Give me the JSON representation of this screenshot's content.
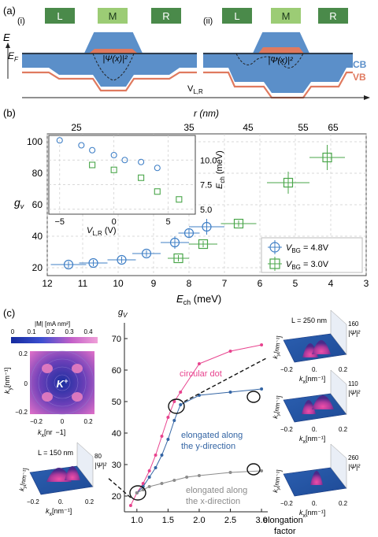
{
  "panel_labels": {
    "a": "(a)",
    "b": "(b)",
    "c": "(c)"
  },
  "panel_a": {
    "sub_i": "(i)",
    "sub_ii": "(ii)",
    "boxes": [
      "L",
      "M",
      "R"
    ],
    "energy_axis": "E",
    "fermi_label": "E",
    "fermi_sub": "F",
    "wavefunction": "|Ψ(x)|²",
    "cb_label": "CB",
    "vb_label": "VB",
    "voltage_label": "V",
    "voltage_sub": "L,R",
    "colors": {
      "cb": "#5b8fc9",
      "vb": "#e07a5f",
      "box_dark": "#4a8a4a",
      "box_light": "#9ccc75"
    }
  },
  "panel_b": {
    "top_axis_label": "r (nm)",
    "top_ticks": [
      "25",
      "35",
      "45",
      "55",
      "65"
    ],
    "y_label": "g",
    "y_sub": "v",
    "x_label": "E",
    "x_sub": "ch",
    "x_unit": " (meV)",
    "legend": [
      {
        "label": "V",
        "sub": "BG",
        "value": " = 4.8V"
      },
      {
        "label": "V",
        "sub": "BG",
        "value": " = 3.0V"
      }
    ],
    "inset": {
      "x_label": "V",
      "x_sub": "L,R",
      "x_unit": " (V)",
      "y_label": "E",
      "y_sub": "ch",
      "y_unit": " (meV)",
      "x_ticks": [
        "−5",
        "0",
        "5"
      ],
      "y_ticks": [
        "10.0",
        "7.5",
        "5.0"
      ]
    },
    "colors": {
      "blue": "#3f7fc6",
      "green": "#4aa64a"
    }
  },
  "chart_data": [
    {
      "type": "scatter",
      "title": "",
      "xlabel": "E_ch (meV)",
      "ylabel": "g_v",
      "xlim": [
        12,
        3
      ],
      "ylim": [
        15,
        105
      ],
      "x_ticks": [
        12,
        11,
        10,
        9,
        8,
        7,
        6,
        5,
        4,
        3
      ],
      "y_ticks": [
        20,
        40,
        60,
        80,
        100
      ],
      "grid": true,
      "legend": "bottom-right",
      "series": [
        {
          "name": "V_BG = 4.8V",
          "marker": "circle",
          "color": "#3f7fc6",
          "points": [
            [
              11.4,
              22,
              0.5,
              2
            ],
            [
              10.7,
              23,
              0.4,
              2
            ],
            [
              9.9,
              25,
              0.4,
              2
            ],
            [
              9.2,
              29,
              0.4,
              2
            ],
            [
              8.4,
              36,
              0.4,
              4
            ],
            [
              8.0,
              42,
              0.3,
              3
            ],
            [
              7.5,
              46,
              0.5,
              5
            ]
          ]
        },
        {
          "name": "V_BG = 3.0V",
          "marker": "square",
          "color": "#4aa64a",
          "points": [
            [
              8.3,
              26,
              0.3,
              2
            ],
            [
              7.6,
              35,
              0.4,
              2
            ],
            [
              6.6,
              48,
              0.5,
              2
            ],
            [
              5.2,
              74,
              0.6,
              7
            ],
            [
              4.1,
              90,
              0.5,
              8
            ]
          ]
        }
      ]
    },
    {
      "type": "scatter",
      "title": "",
      "xlabel": "V_L,R (V)",
      "ylabel": "E_ch (meV)",
      "xlim": [
        -6,
        7.5
      ],
      "ylim": [
        4.5,
        12.5
      ],
      "x_ticks": [
        -5,
        0,
        5
      ],
      "y_ticks": [
        10.0,
        7.5,
        5.0
      ],
      "series": [
        {
          "name": "V_BG = 4.8V",
          "marker": "circle",
          "color": "#3f7fc6",
          "points": [
            [
              -5,
              12.0
            ],
            [
              -3,
              11.5
            ],
            [
              -2,
              11.0
            ],
            [
              0,
              10.5
            ],
            [
              1,
              10.0
            ],
            [
              2.5,
              9.8
            ],
            [
              4,
              9.2
            ]
          ]
        },
        {
          "name": "V_BG = 3.0V",
          "marker": "square",
          "color": "#4aa64a",
          "points": [
            [
              -2,
              9.5
            ],
            [
              0,
              9.0
            ],
            [
              2.5,
              8.2
            ],
            [
              4,
              6.8
            ],
            [
              6,
              6.0
            ]
          ]
        }
      ]
    },
    {
      "type": "line",
      "title": "",
      "xlabel": "elongation factor",
      "ylabel": "g_v",
      "xlim": [
        0.8,
        3.1
      ],
      "ylim": [
        15,
        75
      ],
      "x_ticks": [
        1.0,
        1.5,
        2.0,
        2.5,
        3.0
      ],
      "y_ticks": [
        20,
        30,
        40,
        50,
        60,
        70
      ],
      "series": [
        {
          "name": "circular dot",
          "color": "#e8438e",
          "x": [
            0.9,
            1.0,
            1.1,
            1.2,
            1.3,
            1.4,
            1.5,
            1.6,
            1.7,
            2.0,
            2.5,
            3.0
          ],
          "y": [
            17,
            21,
            24,
            28,
            33,
            39,
            45,
            50,
            53,
            62,
            66,
            68
          ]
        },
        {
          "name": "elongated along the y-direction",
          "color": "#3465a4",
          "x": [
            1.0,
            1.1,
            1.2,
            1.3,
            1.4,
            1.5,
            1.6,
            1.7,
            2.0,
            2.5,
            3.0
          ],
          "y": [
            21,
            23,
            26,
            29,
            33,
            38,
            44,
            49,
            52,
            53,
            54
          ]
        },
        {
          "name": "elongated along the x-direction",
          "color": "#8c8c8c",
          "x": [
            1.0,
            1.1,
            1.2,
            1.4,
            1.6,
            1.8,
            2.0,
            2.5,
            3.0
          ],
          "y": [
            21,
            22,
            23,
            24,
            25,
            26,
            26.5,
            27.5,
            28
          ]
        }
      ]
    }
  ],
  "panel_c": {
    "colorbar_label": "|M| [mA nm²]",
    "colorbar_ticks": [
      "0",
      "0.1",
      "0.2",
      "0.3",
      "0.4"
    ],
    "kplot": {
      "k_label": "K",
      "k_sup": "+",
      "x_label": "k",
      "x_sub": "x",
      "x_unit": "[nr",
      "x_unit_tail": "−1]",
      "y_label": "k",
      "y_sub": "y",
      "y_unit": "[nm⁻¹]",
      "x_ticks": [
        "−0.2",
        "0",
        "0.2"
      ],
      "y_ticks": [
        "0.2",
        "0",
        "−0.2"
      ]
    },
    "gv_label": "g",
    "gv_sub": "V",
    "elongation_label": "elongation",
    "elongation_label2": "factor",
    "series_labels": {
      "circular": "circular dot",
      "y_line1": "elongated along",
      "y_line2": "the y-direction",
      "x_line1": "elongated along",
      "x_line2": "the x-direction"
    },
    "surface_plots": [
      {
        "length": "L = 250 nm",
        "zmax": "160",
        "zlabel": "|Ψ|²"
      },
      {
        "length": "",
        "zmax": "110",
        "zlabel": "|Ψ|²"
      },
      {
        "length": "",
        "zmax": "260",
        "zlabel": "|Ψ|²"
      },
      {
        "length": "L = 150 nm",
        "zmax": "80",
        "zlabel": "|Ψ|²"
      }
    ],
    "surface_axes": {
      "kx": "k",
      "kx_sub": "x",
      "kx_unit": "[nm⁻¹]",
      "ky": "k",
      "ky_sub": "y",
      "ky_unit": "[nm⁻¹]",
      "ticks": [
        "−0.2",
        "0.",
        "0.2"
      ]
    }
  }
}
